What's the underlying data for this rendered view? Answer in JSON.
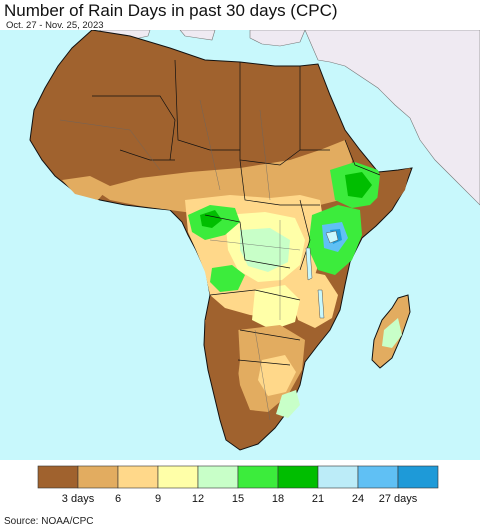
{
  "title": "Number of Rain Days in past 30 days (CPC)",
  "subtitle": "Oct. 27 - Nov. 25, 2023",
  "source": "Source: NOAA/CPC",
  "colors": {
    "ocean": "#c8f8fc",
    "non_african_land": "#efeaf2",
    "border": "#111111"
  },
  "legend": {
    "colors": [
      "#a0622e",
      "#e2ac60",
      "#ffd88a",
      "#ffffa8",
      "#c8ffc8",
      "#3cec3c",
      "#00be00",
      "#bcecf8",
      "#60c0f4",
      "#1e9ad8"
    ],
    "tick_labels": [
      "3 days",
      "6",
      "9",
      "12",
      "15",
      "18",
      "21",
      "24",
      "27 days"
    ]
  }
}
